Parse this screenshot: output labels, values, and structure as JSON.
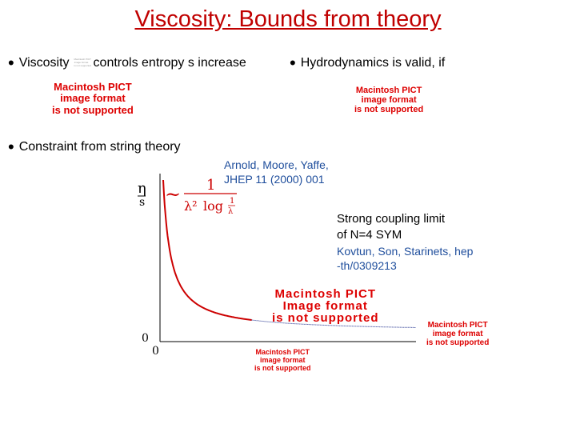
{
  "title": "Viscosity: Bounds from theory",
  "bullets": {
    "viscosity": {
      "prefix": "Viscosity",
      "suffix": "controls entropy s increase"
    },
    "hydro": "Hydrodynamics is valid, if",
    "constraint": "Constraint from string theory"
  },
  "pict_placeholder": {
    "left_top": [
      "Macintosh PICT",
      "image format",
      "is not supported"
    ],
    "right_top": [
      "Macintosh PICT",
      "image format",
      "is not supported"
    ],
    "plot_center": [
      "Macintosh PICT",
      "Image format",
      "is not supported"
    ],
    "plot_right": [
      "Macintosh PICT",
      "image format",
      "is not supported"
    ],
    "plot_bottom": [
      "Macintosh PICT",
      "image format",
      "is not supported"
    ],
    "mini": [
      "Macintosh PICT",
      "image format",
      "is not supported"
    ]
  },
  "references": {
    "arnold": [
      "Arnold, Moore, Yaffe,",
      "JHEP 11 (2000) 001"
    ],
    "strong_coupling": [
      "Strong coupling limit",
      "of N=4 SYM"
    ],
    "kovtun": [
      "Kovtun, Son, Starinets, hep",
      "-th/0309213"
    ]
  },
  "plot": {
    "y_label_top": "η",
    "y_label_bottom": "s",
    "y_zero": "0",
    "x_zero": "0",
    "formula": {
      "tilde": "~",
      "numerator": "1",
      "lambda_sq": "λ²",
      "log": "log",
      "frac_num": "1",
      "frac_den": "λ"
    }
  },
  "colors": {
    "title": "#c00000",
    "curve": "#cc0000",
    "tail": "#1a2a8a",
    "note_blue": "#1f4e9c"
  }
}
